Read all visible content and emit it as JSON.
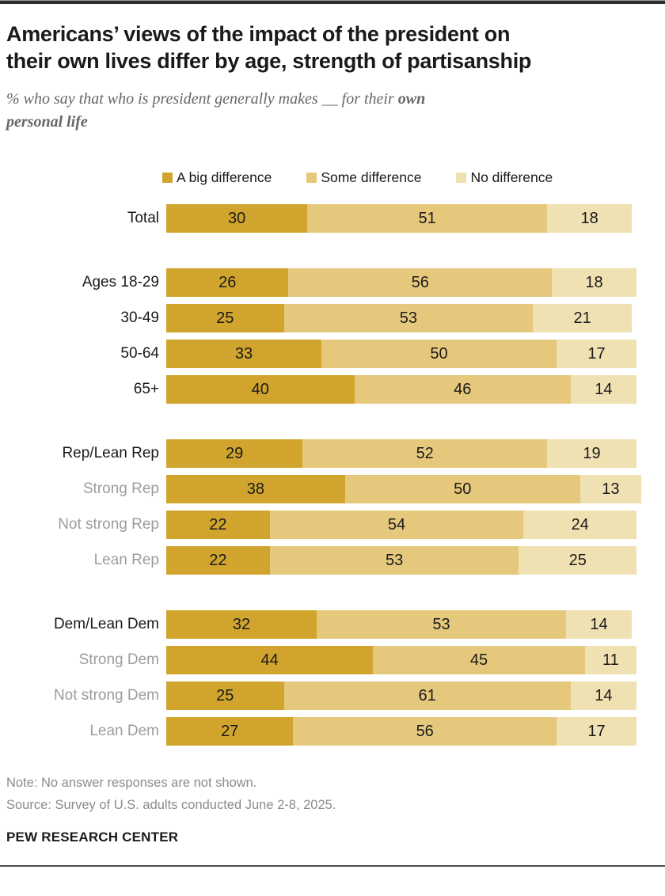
{
  "header": {
    "title_line1": "Americans’ views of the impact of the president on",
    "title_line2": "their own lives differ by age, strength of partisanship",
    "subtitle_line1_regular": "% who say that who is president generally makes __ for their ",
    "subtitle_line1_bold": "own",
    "subtitle_line2_bold": "personal life"
  },
  "legend": [
    {
      "key": "big-difference",
      "label": "A big difference",
      "color": "#D1A52D"
    },
    {
      "key": "some-difference",
      "label": "Some difference",
      "color": "#E5C87C"
    },
    {
      "key": "no-difference",
      "label": "No difference",
      "color": "#F0E1B2"
    }
  ],
  "chart_data": {
    "type": "bar",
    "subtype": "horizontal-stacked",
    "unit": "percent",
    "xlim": [
      0,
      100
    ],
    "series_names": [
      "A big difference",
      "Some difference",
      "No difference"
    ],
    "series_keys": [
      "big-difference",
      "some-difference",
      "no-difference"
    ],
    "groups": [
      {
        "rows": [
          {
            "label": "Total",
            "emphasis": true,
            "values": [
              30,
              51,
              18
            ]
          }
        ]
      },
      {
        "rows": [
          {
            "label": "Ages 18-29",
            "emphasis": true,
            "values": [
              26,
              56,
              18
            ]
          },
          {
            "label": "30-49",
            "emphasis": true,
            "values": [
              25,
              53,
              21
            ]
          },
          {
            "label": "50-64",
            "emphasis": true,
            "values": [
              33,
              50,
              17
            ]
          },
          {
            "label": "65+",
            "emphasis": true,
            "values": [
              40,
              46,
              14
            ]
          }
        ]
      },
      {
        "rows": [
          {
            "label": "Rep/Lean Rep",
            "emphasis": true,
            "values": [
              29,
              52,
              19
            ]
          },
          {
            "label": "Strong Rep",
            "emphasis": false,
            "values": [
              38,
              50,
              13
            ]
          },
          {
            "label": "Not strong Rep",
            "emphasis": false,
            "values": [
              22,
              54,
              24
            ]
          },
          {
            "label": "Lean Rep",
            "emphasis": false,
            "values": [
              22,
              53,
              25
            ]
          }
        ]
      },
      {
        "rows": [
          {
            "label": "Dem/Lean Dem",
            "emphasis": true,
            "values": [
              32,
              53,
              14
            ]
          },
          {
            "label": "Strong Dem",
            "emphasis": false,
            "values": [
              44,
              45,
              11
            ]
          },
          {
            "label": "Not strong Dem",
            "emphasis": false,
            "values": [
              25,
              61,
              14
            ]
          },
          {
            "label": "Lean Dem",
            "emphasis": false,
            "values": [
              27,
              56,
              17
            ]
          }
        ]
      }
    ]
  },
  "footer": {
    "note": "Note: No answer responses are not shown.",
    "source": "Source: Survey of U.S. adults conducted June 2-8, 2025.",
    "brand": "PEW RESEARCH CENTER"
  },
  "colors": {
    "big_difference": "#D1A52D",
    "some_difference": "#E5C87C",
    "no_difference": "#F0E1B2",
    "title_text": "#1a1a1a",
    "subtitle_text": "#666666",
    "muted_label": "#9c9c9c",
    "footnote_text": "#8b8b8b"
  }
}
